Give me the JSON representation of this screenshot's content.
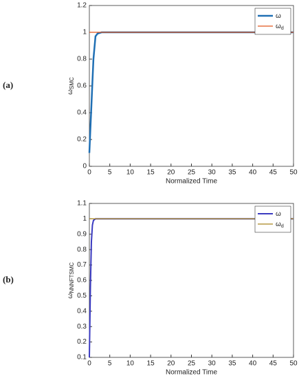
{
  "chart_data": [
    {
      "type": "line",
      "panel_label": "(a)",
      "xlabel": "Normalized Time",
      "ylabel": "ω",
      "ylabel_sub": "SMC",
      "x": [
        0,
        0.25,
        0.5,
        0.75,
        1,
        1.5,
        2,
        3,
        5,
        10,
        20,
        30,
        40,
        50
      ],
      "series": [
        {
          "name": "ω",
          "color": "#1f6fb4",
          "width": 2.5,
          "values": [
            0.1,
            0.28,
            0.45,
            0.63,
            0.8,
            0.97,
            0.99,
            1,
            1,
            1,
            1,
            1,
            1,
            1
          ]
        },
        {
          "name": "ω",
          "name_sub": "d",
          "color": "#e0531a",
          "width": 1.2,
          "values": [
            1,
            1,
            1,
            1,
            1,
            1,
            1,
            1,
            1,
            1,
            1,
            1,
            1,
            1
          ]
        }
      ],
      "xlim": [
        0,
        50
      ],
      "xticks": [
        0,
        5,
        10,
        15,
        20,
        25,
        30,
        35,
        40,
        45,
        50
      ],
      "ylim": [
        0,
        1.2
      ],
      "yticks": [
        0,
        0.2,
        0.4,
        0.6,
        0.8,
        1,
        1.2
      ],
      "legend": "upper right"
    },
    {
      "type": "line",
      "panel_label": "(b)",
      "xlabel": "Normalized Time",
      "ylabel": "ω",
      "ylabel_sub": "NNNFTSMC",
      "x": [
        0,
        0.25,
        0.5,
        0.75,
        1,
        1.5,
        2,
        3,
        5,
        10,
        20,
        30,
        40,
        50
      ],
      "series": [
        {
          "name": "ω",
          "color": "#3a3ac0",
          "width": 2,
          "values": [
            0.1,
            0.55,
            0.85,
            0.96,
            0.99,
            1,
            1,
            1,
            1,
            1,
            1,
            1,
            1,
            1
          ]
        },
        {
          "name": "ω",
          "name_sub": "d",
          "color": "#a8841c",
          "width": 1.2,
          "values": [
            1,
            1,
            1,
            1,
            1,
            1,
            1,
            1,
            1,
            1,
            1,
            1,
            1,
            1
          ]
        }
      ],
      "xlim": [
        0,
        50
      ],
      "xticks": [
        0,
        5,
        10,
        15,
        20,
        25,
        30,
        35,
        40,
        45,
        50
      ],
      "ylim": [
        0.1,
        1.1
      ],
      "yticks": [
        0.1,
        0.2,
        0.3,
        0.4,
        0.5,
        0.6,
        0.7,
        0.8,
        0.9,
        1,
        1.1
      ],
      "legend": "upper right"
    }
  ]
}
